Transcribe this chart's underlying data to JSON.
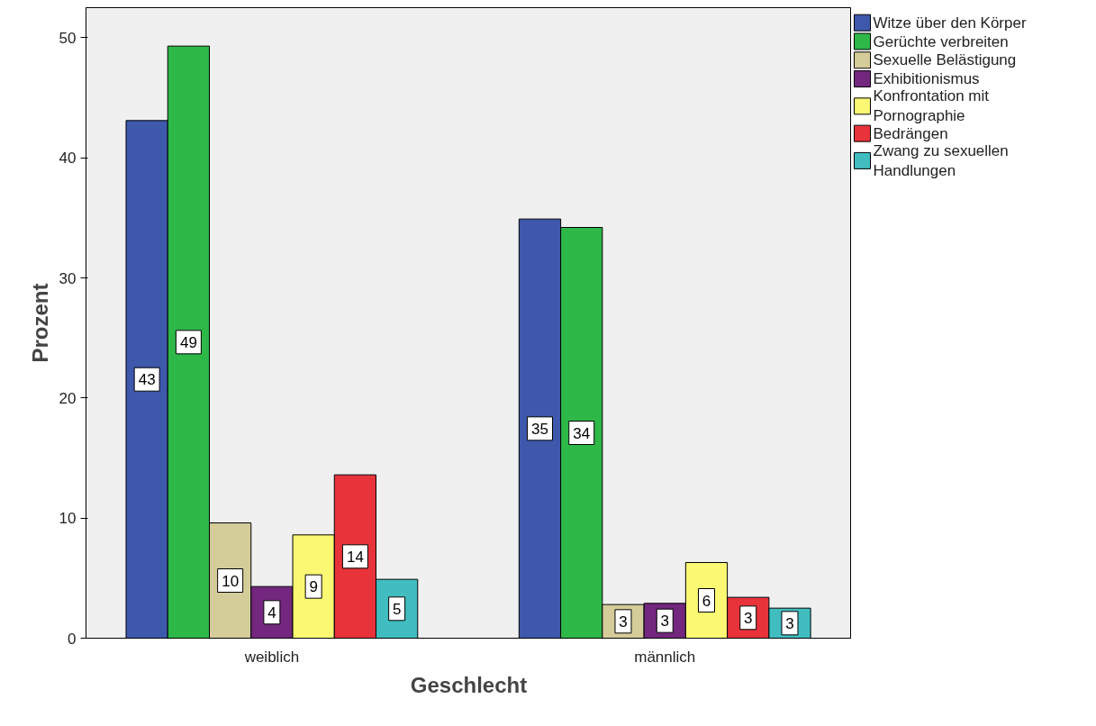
{
  "chart_data": {
    "type": "bar",
    "xlabel": "Geschlecht",
    "ylabel": "Prozent",
    "categories": [
      "weiblich",
      "männlich"
    ],
    "ylim": [
      0,
      52.5
    ],
    "yticks": [
      0,
      10,
      20,
      30,
      40,
      50
    ],
    "grid": false,
    "legend": "top right",
    "series": [
      {
        "name": "Witze über den Körper",
        "color": "#3e58ac",
        "values": [
          43.1,
          34.9
        ],
        "value_labels": [
          "43",
          "35"
        ]
      },
      {
        "name": "Gerüchte verbreiten",
        "color": "#2eb848",
        "values": [
          49.3,
          34.2
        ],
        "value_labels": [
          "49",
          "34"
        ]
      },
      {
        "name": "Sexuelle Belästigung",
        "color": "#d4cc99",
        "values": [
          9.6,
          2.8
        ],
        "value_labels": [
          "10",
          "3"
        ]
      },
      {
        "name": "Exhibitionismus",
        "color": "#73277e",
        "values": [
          4.3,
          2.9
        ],
        "value_labels": [
          "4",
          "3"
        ]
      },
      {
        "name": "Konfrontation mit Pornographie",
        "color": "#fbf873",
        "values": [
          8.6,
          6.3
        ],
        "value_labels": [
          "9",
          "6"
        ]
      },
      {
        "name": "Bedrängen",
        "color": "#e8333b",
        "values": [
          13.6,
          3.4
        ],
        "value_labels": [
          "14",
          "3"
        ]
      },
      {
        "name": "Zwang zu sexuellen Handlungen",
        "color": "#41bdc0",
        "values": [
          4.9,
          2.5
        ],
        "value_labels": [
          "5",
          "3"
        ]
      }
    ]
  }
}
